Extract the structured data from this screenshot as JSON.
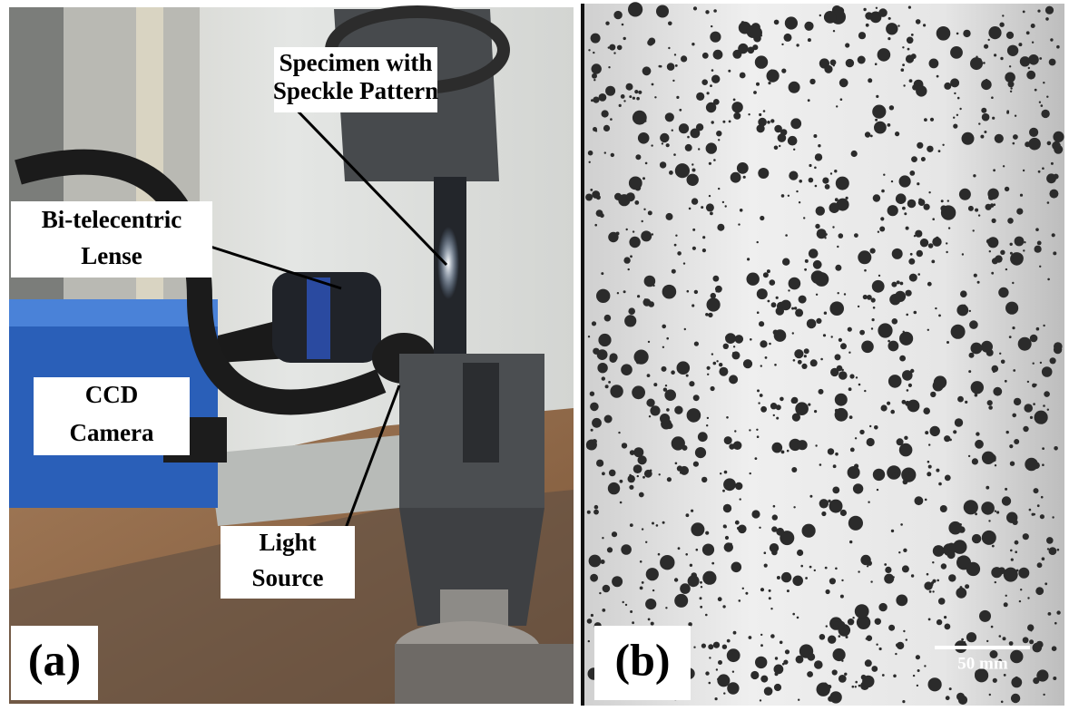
{
  "panels": [
    {
      "label": "(a)",
      "callouts": [
        {
          "lines": [
            "Specimen with",
            "Speckle Pattern"
          ]
        },
        {
          "lines": [
            "Bi-telecentric",
            "Lense"
          ]
        },
        {
          "lines": [
            "CCD",
            "Camera"
          ]
        },
        {
          "lines": [
            "Light",
            "Source"
          ]
        }
      ]
    },
    {
      "label": "(b)",
      "scale_bar": "50 mm"
    }
  ]
}
